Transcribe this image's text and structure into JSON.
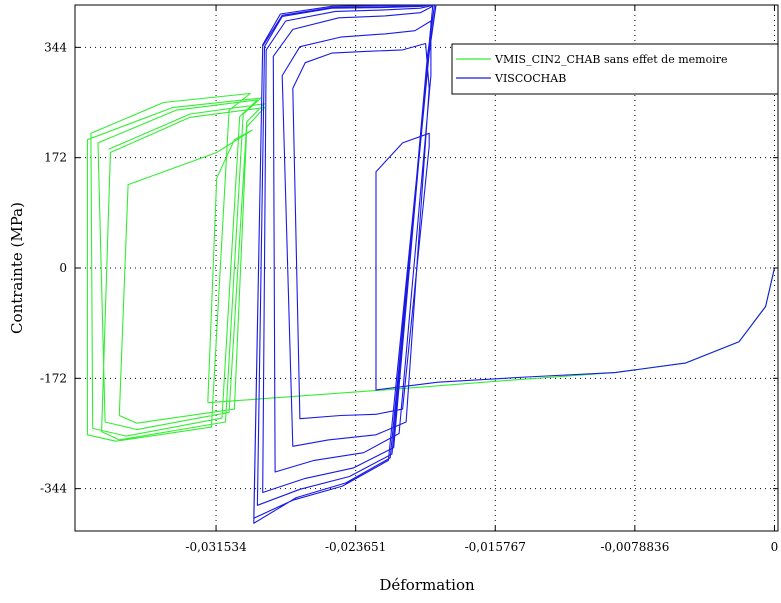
{
  "chart_data": {
    "type": "line",
    "title": "",
    "xlabel": "Déformation",
    "ylabel": "Contrainte (MPa)",
    "xlim": [
      -0.0395,
      0.0002
    ],
    "ylim": [
      -410,
      410
    ],
    "x_ticks": [
      -0.031534,
      -0.023651,
      -0.015767,
      -0.0078836,
      0
    ],
    "x_tick_labels": [
      "-0,031534",
      "-0,023651",
      "-0,015767",
      "-0,0078836",
      "0"
    ],
    "y_ticks": [
      344,
      172,
      0,
      -172,
      -344
    ],
    "y_tick_labels": [
      "344",
      "172",
      "0",
      "-172",
      "-344"
    ],
    "grid": true,
    "legend_position": "top-right",
    "series": [
      {
        "name": "VMIS_CIN2_CHAB sans effet de memoire",
        "color": "#33ee33",
        "segments": [
          [
            [
              0,
              0
            ],
            [
              -0.0005,
              -60
            ],
            [
              -0.002,
              -115
            ],
            [
              -0.005,
              -148
            ],
            [
              -0.009,
              -163
            ],
            [
              -0.015,
              -175
            ],
            [
              -0.022,
              -190
            ],
            [
              -0.032,
              -210
            ]
          ],
          [
            [
              -0.032,
              -210
            ],
            [
              -0.0315,
              140
            ],
            [
              -0.0305,
              200
            ],
            [
              -0.0295,
              215
            ],
            [
              -0.0315,
              180
            ],
            [
              -0.0365,
              130
            ],
            [
              -0.037,
              -230
            ],
            [
              -0.036,
              -242
            ],
            [
              -0.0305,
              -220
            ],
            [
              -0.0298,
              220
            ],
            [
              -0.0288,
              250
            ],
            [
              -0.033,
              235
            ],
            [
              -0.0375,
              180
            ],
            [
              -0.038,
              -255
            ],
            [
              -0.037,
              -268
            ],
            [
              -0.031,
              -240
            ],
            [
              -0.03,
              240
            ],
            [
              -0.029,
              265
            ],
            [
              -0.034,
              250
            ],
            [
              -0.0388,
              200
            ],
            [
              -0.0388,
              -260
            ],
            [
              -0.0372,
              -270
            ],
            [
              -0.0318,
              -248
            ],
            [
              -0.0308,
              246
            ],
            [
              -0.0296,
              272
            ],
            [
              -0.0345,
              258
            ],
            [
              -0.0386,
              210
            ],
            [
              -0.0385,
              -250
            ],
            [
              -0.0366,
              -262
            ],
            [
              -0.0312,
              -234
            ],
            [
              -0.0302,
              236
            ],
            [
              -0.0292,
              262
            ],
            [
              -0.0338,
              246
            ],
            [
              -0.0382,
              195
            ],
            [
              -0.0378,
              -240
            ],
            [
              -0.036,
              -252
            ],
            [
              -0.0308,
              -225
            ],
            [
              -0.0298,
              228
            ],
            [
              -0.0288,
              256
            ],
            [
              -0.033,
              240
            ],
            [
              -0.0376,
              185
            ]
          ]
        ]
      },
      {
        "name": "VISCOCHAB",
        "color": "#1a1ae6",
        "segments": [
          [
            [
              0,
              0
            ],
            [
              -0.0005,
              -60
            ],
            [
              -0.002,
              -115
            ],
            [
              -0.005,
              -148
            ],
            [
              -0.009,
              -163
            ],
            [
              -0.014,
              -170
            ],
            [
              -0.019,
              -178
            ],
            [
              -0.0225,
              -190
            ],
            [
              -0.0225,
              150
            ],
            [
              -0.021,
              195
            ],
            [
              -0.0195,
              210
            ],
            [
              -0.0195,
              190
            ],
            [
              -0.021,
              -220
            ],
            [
              -0.0225,
              -228
            ]
          ],
          [
            [
              -0.0225,
              -228
            ],
            [
              -0.0245,
              -230
            ],
            [
              -0.0268,
              -235
            ],
            [
              -0.0272,
              280
            ],
            [
              -0.0265,
              320
            ],
            [
              -0.025,
              335
            ],
            [
              -0.0228,
              338
            ],
            [
              -0.021,
              340
            ],
            [
              -0.0197,
              350
            ],
            [
              -0.0195,
              280
            ],
            [
              -0.0208,
              -240
            ],
            [
              -0.0225,
              -260
            ],
            [
              -0.0252,
              -268
            ],
            [
              -0.0272,
              -278
            ],
            [
              -0.0278,
              300
            ],
            [
              -0.0268,
              345
            ],
            [
              -0.0245,
              360
            ],
            [
              -0.022,
              365
            ],
            [
              -0.0203,
              370
            ],
            [
              -0.0194,
              385
            ],
            [
              -0.0194,
              300
            ],
            [
              -0.0212,
              -258
            ],
            [
              -0.0232,
              -288
            ],
            [
              -0.026,
              -300
            ],
            [
              -0.0282,
              -318
            ],
            [
              -0.0283,
              330
            ],
            [
              -0.0272,
              372
            ],
            [
              -0.0246,
              390
            ],
            [
              -0.022,
              393
            ],
            [
              -0.02,
              398
            ],
            [
              -0.0193,
              408
            ],
            [
              -0.0196,
              320
            ],
            [
              -0.0215,
              -280
            ],
            [
              -0.0238,
              -312
            ],
            [
              -0.0265,
              -328
            ],
            [
              -0.0289,
              -350
            ],
            [
              -0.0287,
              340
            ],
            [
              -0.0276,
              385
            ],
            [
              -0.0248,
              400
            ],
            [
              -0.0222,
              402
            ],
            [
              -0.02,
              405
            ],
            [
              -0.0192,
              410
            ],
            [
              -0.0196,
              330
            ],
            [
              -0.0216,
              -290
            ],
            [
              -0.024,
              -325
            ],
            [
              -0.0268,
              -345
            ],
            [
              -0.0292,
              -370
            ],
            [
              -0.0288,
              345
            ],
            [
              -0.0278,
              392
            ],
            [
              -0.025,
              405
            ],
            [
              -0.0222,
              406
            ],
            [
              -0.0199,
              408
            ],
            [
              -0.0191,
              412
            ],
            [
              -0.0195,
              335
            ],
            [
              -0.0217,
              -296
            ],
            [
              -0.0242,
              -335
            ],
            [
              -0.027,
              -358
            ],
            [
              -0.0294,
              -398
            ],
            [
              -0.0289,
              348
            ],
            [
              -0.0279,
              396
            ],
            [
              -0.025,
              408
            ],
            [
              -0.0222,
              409
            ],
            [
              -0.0198,
              410
            ],
            [
              -0.0191,
              414
            ],
            [
              -0.0195,
              338
            ],
            [
              -0.0218,
              -300
            ],
            [
              -0.0244,
              -340
            ],
            [
              -0.0272,
              -362
            ],
            [
              -0.0294,
              -390
            ],
            [
              -0.0289,
              346
            ],
            [
              -0.0278,
              394
            ],
            [
              -0.025,
              406
            ],
            [
              -0.0222,
              407
            ],
            [
              -0.0198,
              409
            ],
            [
              -0.0191,
              412
            ]
          ]
        ]
      }
    ]
  }
}
